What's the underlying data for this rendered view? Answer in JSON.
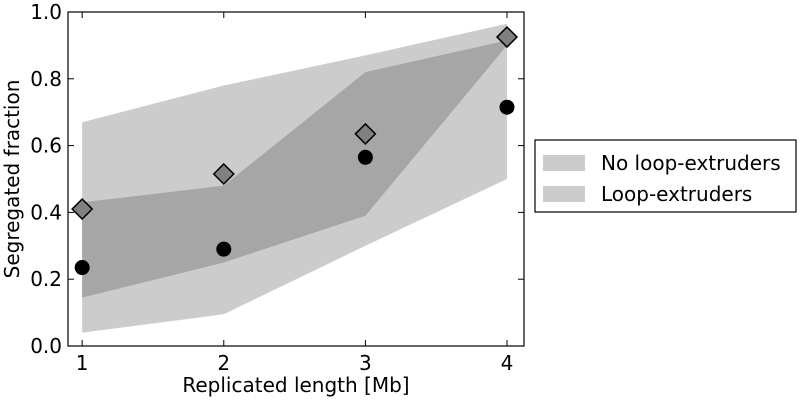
{
  "chart_data": {
    "type": "scatter",
    "xlabel": "Replicated length [Mb]",
    "ylabel": "Segregated fraction",
    "xlim": [
      0.9,
      4.12
    ],
    "ylim": [
      0.0,
      1.0
    ],
    "xticks": [
      1,
      2,
      3,
      4
    ],
    "xtick_labels": [
      "1",
      "2",
      "3",
      "4"
    ],
    "yticks": [
      0.0,
      0.2,
      0.4,
      0.6,
      0.8,
      1.0
    ],
    "ytick_labels": [
      "0.0",
      "0.2",
      "0.4",
      "0.6",
      "0.8",
      "1.0"
    ],
    "grid": false,
    "legend_position": "right",
    "bands": [
      {
        "name": "No loop-extruders",
        "color": "#cccccc",
        "x": [
          1,
          2,
          3,
          4
        ],
        "lower": [
          0.04,
          0.095,
          0.3,
          0.5
        ],
        "upper": [
          0.67,
          0.78,
          0.87,
          0.965
        ]
      },
      {
        "name": "Loop-extruders",
        "color": "#a6a6a6",
        "x": [
          1,
          2,
          3,
          4
        ],
        "lower": [
          0.145,
          0.25,
          0.39,
          0.9
        ],
        "upper": [
          0.43,
          0.48,
          0.82,
          0.915
        ]
      }
    ],
    "series": [
      {
        "marker": "circle",
        "color": "#000000",
        "points": [
          {
            "x": 1,
            "y": 0.235
          },
          {
            "x": 2,
            "y": 0.29
          },
          {
            "x": 3,
            "y": 0.565
          },
          {
            "x": 4,
            "y": 0.715
          }
        ]
      },
      {
        "marker": "diamond",
        "color": "#808080",
        "points": [
          {
            "x": 1,
            "y": 0.41
          },
          {
            "x": 2,
            "y": 0.515
          },
          {
            "x": 3,
            "y": 0.635
          },
          {
            "x": 4,
            "y": 0.925
          }
        ]
      }
    ]
  }
}
